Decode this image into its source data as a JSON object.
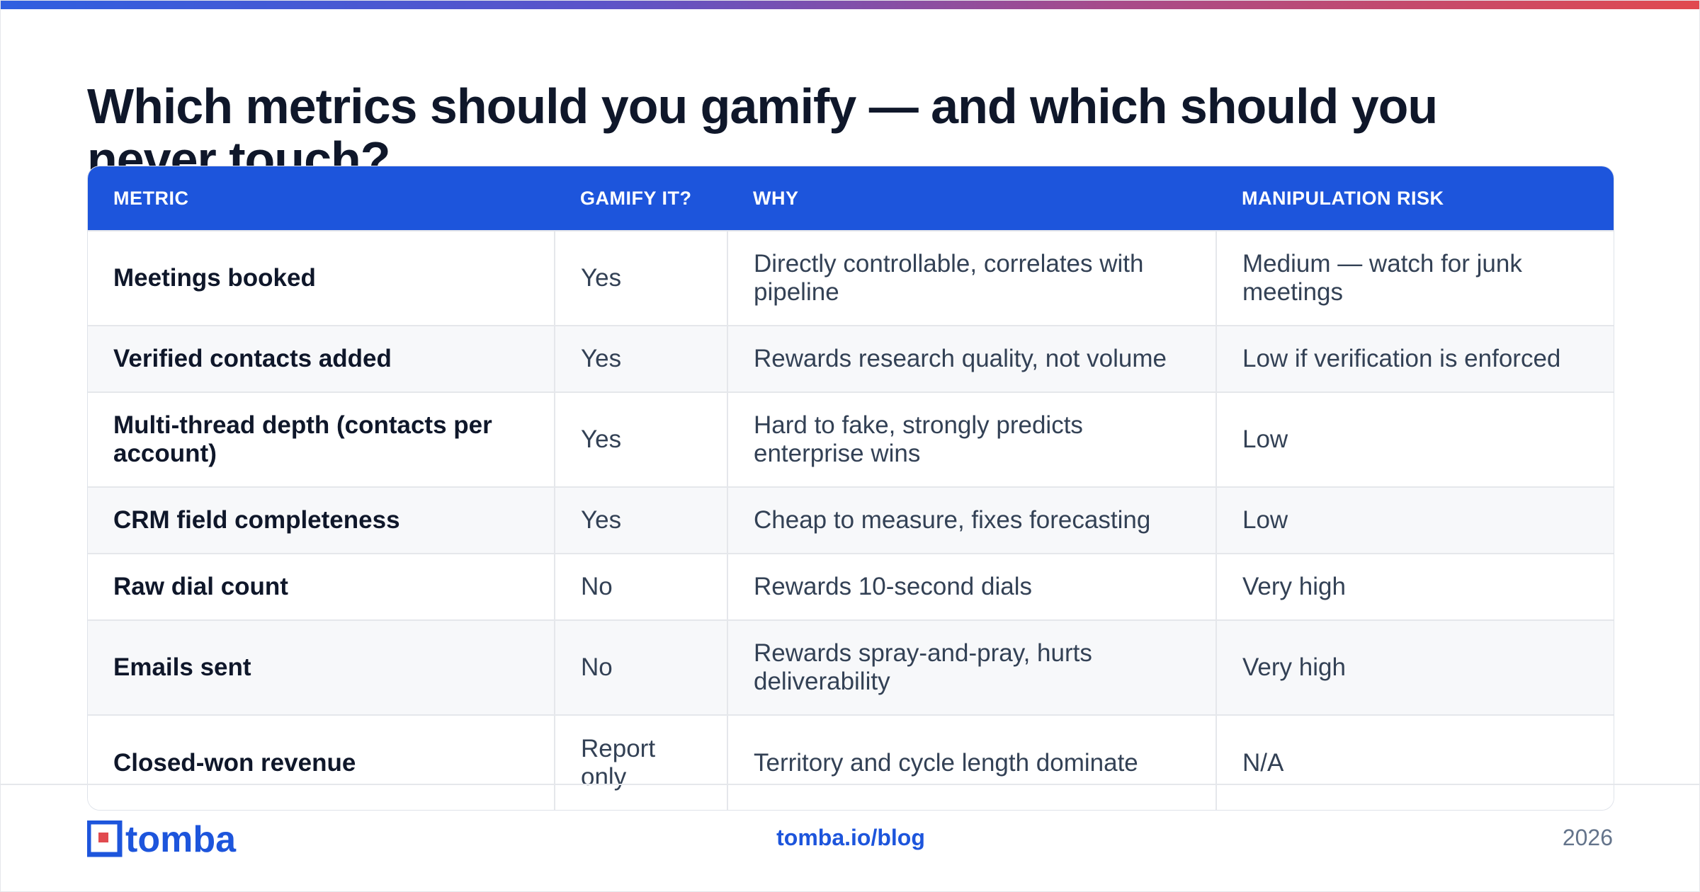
{
  "title": "Which metrics should you gamify — and which should you never touch?",
  "table": {
    "headers": [
      "METRIC",
      "GAMIFY IT?",
      "WHY",
      "MANIPULATION RISK"
    ],
    "rows": [
      [
        "Meetings booked",
        "Yes",
        "Directly controllable, correlates with pipeline",
        "Medium — watch for junk meetings"
      ],
      [
        "Verified contacts added",
        "Yes",
        "Rewards research quality, not volume",
        "Low if verification is enforced"
      ],
      [
        "Multi-thread depth (contacts per account)",
        "Yes",
        "Hard to fake, strongly predicts enterprise wins",
        "Low"
      ],
      [
        "CRM field completeness",
        "Yes",
        "Cheap to measure, fixes forecasting",
        "Low"
      ],
      [
        "Raw dial count",
        "No",
        "Rewards 10-second dials",
        "Very high"
      ],
      [
        "Emails sent",
        "No",
        "Rewards spray-and-pray, hurts deliverability",
        "Very high"
      ],
      [
        "Closed-won revenue",
        "Report only",
        "Territory and cycle length dominate",
        "N/A"
      ]
    ]
  },
  "footer": {
    "logo_text": "tomba",
    "link": "tomba.io/blog",
    "year": "2026"
  },
  "colors": {
    "accent": "#1d55dc",
    "header_bg": "#1d55dc",
    "title": "#0f172a",
    "muted": "#64748b"
  },
  "icons": {
    "logo": "tomba-logo"
  }
}
